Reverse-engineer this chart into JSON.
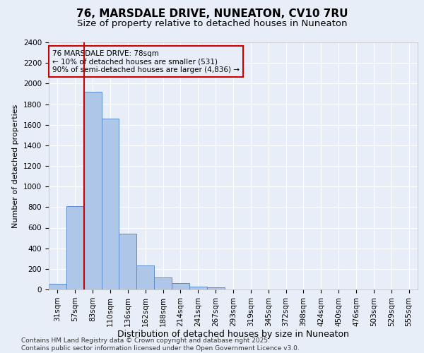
{
  "title": "76, MARSDALE DRIVE, NUNEATON, CV10 7RU",
  "subtitle": "Size of property relative to detached houses in Nuneaton",
  "xlabel": "Distribution of detached houses by size in Nuneaton",
  "ylabel": "Number of detached properties",
  "footnote": "Contains HM Land Registry data © Crown copyright and database right 2025.\nContains public sector information licensed under the Open Government Licence v3.0.",
  "bar_labels": [
    "31sqm",
    "57sqm",
    "83sqm",
    "110sqm",
    "136sqm",
    "162sqm",
    "188sqm",
    "214sqm",
    "241sqm",
    "267sqm",
    "293sqm",
    "319sqm",
    "345sqm",
    "372sqm",
    "398sqm",
    "424sqm",
    "450sqm",
    "476sqm",
    "503sqm",
    "529sqm",
    "555sqm"
  ],
  "bar_values": [
    55,
    810,
    1920,
    1660,
    540,
    235,
    115,
    60,
    30,
    18,
    0,
    0,
    0,
    0,
    0,
    0,
    0,
    0,
    0,
    0,
    0
  ],
  "bar_color": "#aec6e8",
  "bar_edge_color": "#5b8dc8",
  "background_color": "#e8eef8",
  "grid_color": "#ffffff",
  "vline_color": "#cc0000",
  "vline_pos": 1.5,
  "annotation_text": "76 MARSDALE DRIVE: 78sqm\n← 10% of detached houses are smaller (531)\n90% of semi-detached houses are larger (4,836) →",
  "annotation_box_color": "#cc0000",
  "ylim": [
    0,
    2400
  ],
  "yticks": [
    0,
    200,
    400,
    600,
    800,
    1000,
    1200,
    1400,
    1600,
    1800,
    2000,
    2200,
    2400
  ],
  "title_fontsize": 11,
  "subtitle_fontsize": 9.5,
  "xlabel_fontsize": 9,
  "ylabel_fontsize": 8,
  "tick_fontsize": 7.5,
  "annotation_fontsize": 7.5,
  "footnote_fontsize": 6.5
}
